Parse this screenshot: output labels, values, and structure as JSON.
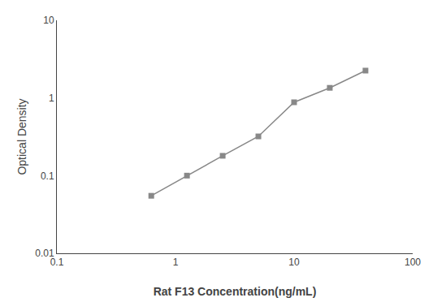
{
  "chart_data": {
    "type": "line",
    "x": [
      0.625,
      1.25,
      2.5,
      5.0,
      10.0,
      20.0,
      40.0
    ],
    "values": [
      0.055,
      0.1,
      0.18,
      0.32,
      0.88,
      1.35,
      2.25
    ],
    "xlabel": "Rat F13 Concentration(ng/mL)",
    "ylabel": "Optical Density",
    "xlim": [
      0.1,
      100
    ],
    "ylim": [
      0.01,
      10
    ],
    "xticks": [
      0.1,
      1,
      10,
      100
    ],
    "yticks": [
      0.01,
      0.1,
      1,
      10
    ],
    "log": true,
    "grid": false,
    "color": "#888888",
    "marker": "square",
    "line_style": "solid"
  }
}
